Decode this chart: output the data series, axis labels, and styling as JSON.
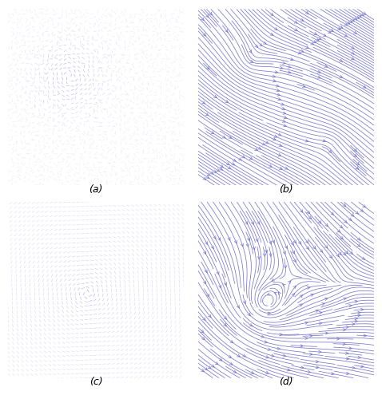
{
  "figsize": [
    4.78,
    4.95
  ],
  "dpi": 100,
  "arrow_color": "#7777cc",
  "stream_color": "#7777cc",
  "background": "#ffffff",
  "labels": [
    "(a)",
    "(b)",
    "(c)",
    "(d)"
  ],
  "label_fontsize": 9,
  "label_fontstyle": "italic"
}
